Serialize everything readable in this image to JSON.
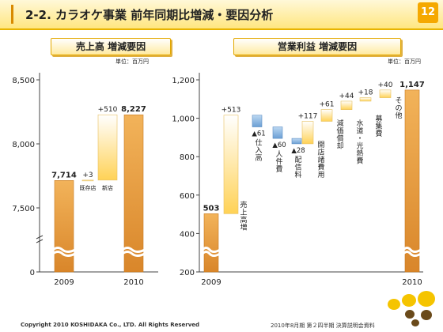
{
  "header": {
    "title": "2-2. カラオケ事業 前年同期比増減・要因分析",
    "page": "12"
  },
  "left_panel": {
    "label": "売上高 増減要因",
    "unit": "単位：百万円"
  },
  "right_panel": {
    "label": "営業利益 増減要因",
    "unit": "単位：百万円"
  },
  "footer": {
    "copyright": "Copyright 2010 KOSHIDAKA Co., LTD. All Rights Reserved",
    "doc": "2010年8月期 第２四半期 決算説明会資料"
  },
  "colors": {
    "accent": "#f5a800",
    "bar_orange": "#e8a040",
    "bar_yellow": "#ffe080",
    "bar_blue": "#8ab8e0",
    "header_line": "#e8b400"
  },
  "chart_data": [
    {
      "type": "waterfall",
      "title": "売上高 増減要因",
      "unit": "単位：百万円",
      "ylim": [
        7500,
        8500
      ],
      "yticks": [
        "0",
        "7,500",
        "8,000",
        "8,500"
      ],
      "axis_break": true,
      "steps": [
        {
          "label": "2009",
          "value": 7714,
          "kind": "total",
          "text": "7,714"
        },
        {
          "label": "既存店",
          "value": 3,
          "kind": "increase",
          "text": "+3"
        },
        {
          "label": "新店",
          "value": 510,
          "kind": "increase",
          "text": "+510"
        },
        {
          "label": "2010",
          "value": 8227,
          "kind": "total",
          "text": "8,227"
        }
      ]
    },
    {
      "type": "waterfall",
      "title": "営業利益 増減要因",
      "unit": "単位：百万円",
      "ylim": [
        200,
        1200
      ],
      "yticks": [
        "200",
        "400",
        "600",
        "800",
        "1,000",
        "1,200"
      ],
      "axis_break": true,
      "steps": [
        {
          "label": "2009",
          "value": 503,
          "kind": "total",
          "text": "503"
        },
        {
          "label": "売上高増",
          "value": 513,
          "kind": "increase",
          "text": "+513"
        },
        {
          "label": "仕入高",
          "value": -61,
          "kind": "decrease",
          "text": "▲61"
        },
        {
          "label": "人件費",
          "value": -60,
          "kind": "decrease",
          "text": "▲60"
        },
        {
          "label": "配信料",
          "value": -28,
          "kind": "decrease",
          "text": "▲28"
        },
        {
          "label": "開店諸費用",
          "value": 117,
          "kind": "increase",
          "text": "+117"
        },
        {
          "label": "減価償却",
          "value": 61,
          "kind": "increase",
          "text": "+61"
        },
        {
          "label": "水道・光熱費",
          "value": 44,
          "kind": "increase",
          "text": "+44"
        },
        {
          "label": "募集費",
          "value": 18,
          "kind": "increase",
          "text": "+18"
        },
        {
          "label": "その他",
          "value": 40,
          "kind": "increase",
          "text": "+40"
        },
        {
          "label": "2010",
          "value": 1147,
          "kind": "total",
          "text": "1,147"
        }
      ]
    }
  ]
}
